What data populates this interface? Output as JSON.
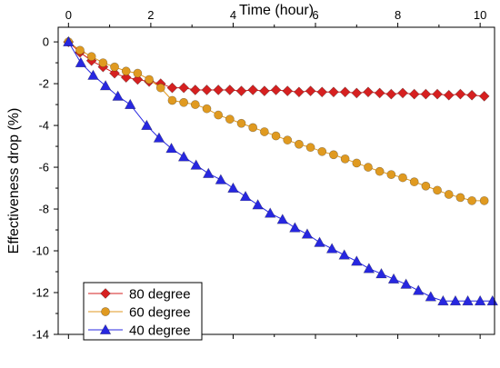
{
  "chart_data": {
    "type": "line",
    "title": "",
    "xlabel": "Time (hour)",
    "ylabel": "Effectiveness drop (%)",
    "xlim": [
      -0.25,
      10.35
    ],
    "ylim": [
      -14,
      0.7
    ],
    "xticks": [
      0,
      2,
      4,
      6,
      8,
      10
    ],
    "yticks": [
      0,
      -2,
      -4,
      -6,
      -8,
      -10,
      -12,
      -14
    ],
    "grid": false,
    "legend_position": "bottom-left",
    "series": [
      {
        "name": "80 degree",
        "color": "#d62020",
        "marker": "diamond",
        "x": [
          0,
          0.28,
          0.56,
          0.84,
          1.12,
          1.4,
          1.68,
          1.96,
          2.24,
          2.52,
          2.8,
          3.08,
          3.36,
          3.64,
          3.92,
          4.2,
          4.48,
          4.76,
          5.04,
          5.32,
          5.6,
          5.88,
          6.16,
          6.44,
          6.72,
          7.0,
          7.28,
          7.56,
          7.84,
          8.12,
          8.4,
          8.68,
          8.96,
          9.24,
          9.52,
          9.8,
          10.1
        ],
        "y": [
          0,
          -0.5,
          -0.9,
          -1.2,
          -1.5,
          -1.7,
          -1.8,
          -1.9,
          -2.0,
          -2.2,
          -2.2,
          -2.3,
          -2.3,
          -2.3,
          -2.3,
          -2.35,
          -2.3,
          -2.35,
          -2.3,
          -2.35,
          -2.4,
          -2.35,
          -2.4,
          -2.4,
          -2.4,
          -2.45,
          -2.4,
          -2.45,
          -2.5,
          -2.45,
          -2.5,
          -2.5,
          -2.5,
          -2.55,
          -2.5,
          -2.55,
          -2.6
        ]
      },
      {
        "name": "60 degree",
        "color": "#e09a20",
        "marker": "circle",
        "x": [
          0,
          0.28,
          0.56,
          0.84,
          1.12,
          1.4,
          1.68,
          1.96,
          2.24,
          2.52,
          2.8,
          3.08,
          3.36,
          3.64,
          3.92,
          4.2,
          4.48,
          4.76,
          5.04,
          5.32,
          5.6,
          5.88,
          6.16,
          6.44,
          6.72,
          7.0,
          7.28,
          7.56,
          7.84,
          8.12,
          8.4,
          8.68,
          8.96,
          9.24,
          9.52,
          9.8,
          10.1
        ],
        "y": [
          0,
          -0.4,
          -0.7,
          -1.0,
          -1.2,
          -1.4,
          -1.5,
          -1.8,
          -2.2,
          -2.8,
          -2.9,
          -3.0,
          -3.2,
          -3.5,
          -3.7,
          -3.9,
          -4.1,
          -4.3,
          -4.5,
          -4.7,
          -4.9,
          -5.05,
          -5.25,
          -5.4,
          -5.6,
          -5.8,
          -6.0,
          -6.2,
          -6.35,
          -6.5,
          -6.7,
          -6.9,
          -7.1,
          -7.3,
          -7.45,
          -7.6,
          -7.6
        ]
      },
      {
        "name": "40 degree",
        "color": "#2727e0",
        "marker": "triangle",
        "x": [
          0,
          0.3,
          0.6,
          0.9,
          1.2,
          1.5,
          1.9,
          2.2,
          2.5,
          2.8,
          3.1,
          3.4,
          3.7,
          4.0,
          4.3,
          4.6,
          4.9,
          5.2,
          5.5,
          5.8,
          6.1,
          6.4,
          6.7,
          7.0,
          7.3,
          7.6,
          7.9,
          8.2,
          8.5,
          8.8,
          9.1,
          9.4,
          9.7,
          10.0,
          10.3
        ],
        "y": [
          0,
          -1.0,
          -1.6,
          -2.1,
          -2.6,
          -3.0,
          -4.0,
          -4.6,
          -5.1,
          -5.5,
          -5.9,
          -6.3,
          -6.6,
          -7.0,
          -7.4,
          -7.8,
          -8.2,
          -8.5,
          -8.9,
          -9.2,
          -9.6,
          -9.9,
          -10.2,
          -10.5,
          -10.85,
          -11.1,
          -11.35,
          -11.6,
          -11.9,
          -12.2,
          -12.4,
          -12.4,
          -12.4,
          -12.4,
          -12.4
        ]
      }
    ]
  }
}
